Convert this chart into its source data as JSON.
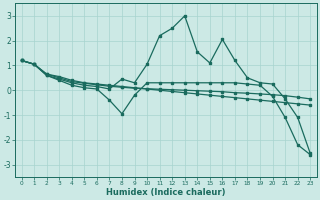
{
  "xlabel": "Humidex (Indice chaleur)",
  "xlim": [
    -0.5,
    23.5
  ],
  "ylim": [
    -3.5,
    3.5
  ],
  "yticks": [
    -3,
    -2,
    -1,
    0,
    1,
    2,
    3
  ],
  "xticks": [
    0,
    1,
    2,
    3,
    4,
    5,
    6,
    7,
    8,
    9,
    10,
    11,
    12,
    13,
    14,
    15,
    16,
    17,
    18,
    19,
    20,
    21,
    22,
    23
  ],
  "bg_color": "#cce9e5",
  "line_color": "#1a6b5e",
  "grid_color": "#a8d4cf",
  "line1_x": [
    0,
    1,
    2,
    3,
    4,
    5,
    6,
    7,
    8,
    9,
    10,
    11,
    12,
    13,
    14,
    15,
    16,
    17,
    18,
    19,
    20,
    21,
    22,
    23
  ],
  "line1_y": [
    1.2,
    1.05,
    0.65,
    0.55,
    0.4,
    0.3,
    0.25,
    0.2,
    0.15,
    0.1,
    0.05,
    0.0,
    -0.05,
    -0.1,
    -0.15,
    -0.2,
    -0.25,
    -0.3,
    -0.35,
    -0.4,
    -0.45,
    -0.5,
    -0.55,
    -0.6
  ],
  "line2_x": [
    0,
    1,
    2,
    3,
    4,
    5,
    6,
    7,
    8,
    9,
    10,
    11,
    12,
    13,
    14,
    15,
    16,
    17,
    18,
    19,
    20,
    21,
    22,
    23
  ],
  "line2_y": [
    1.2,
    1.05,
    0.6,
    0.45,
    0.3,
    0.2,
    0.15,
    0.05,
    0.45,
    0.3,
    1.05,
    2.2,
    2.5,
    3.0,
    1.55,
    1.1,
    2.05,
    1.2,
    0.5,
    0.3,
    0.25,
    -0.35,
    -1.1,
    -2.55
  ],
  "line3_x": [
    0,
    1,
    2,
    3,
    4,
    5,
    6,
    7,
    8,
    9,
    10,
    11,
    12,
    13,
    14,
    15,
    16,
    17,
    18,
    19,
    20,
    21,
    22,
    23
  ],
  "line3_y": [
    1.2,
    1.05,
    0.6,
    0.4,
    0.2,
    0.1,
    0.05,
    -0.4,
    -0.95,
    -0.2,
    0.3,
    0.3,
    0.3,
    0.3,
    0.3,
    0.3,
    0.3,
    0.3,
    0.25,
    0.2,
    -0.25,
    -1.1,
    -2.2,
    -2.6
  ],
  "line4_x": [
    0,
    1,
    2,
    3,
    4,
    5,
    6,
    7,
    8,
    9,
    10,
    11,
    12,
    13,
    14,
    15,
    16,
    17,
    18,
    19,
    20,
    21,
    22,
    23
  ],
  "line4_y": [
    1.2,
    1.05,
    0.65,
    0.5,
    0.35,
    0.28,
    0.22,
    0.16,
    0.12,
    0.08,
    0.06,
    0.04,
    0.02,
    0.0,
    -0.02,
    -0.04,
    -0.06,
    -0.1,
    -0.12,
    -0.15,
    -0.18,
    -0.22,
    -0.28,
    -0.35
  ]
}
